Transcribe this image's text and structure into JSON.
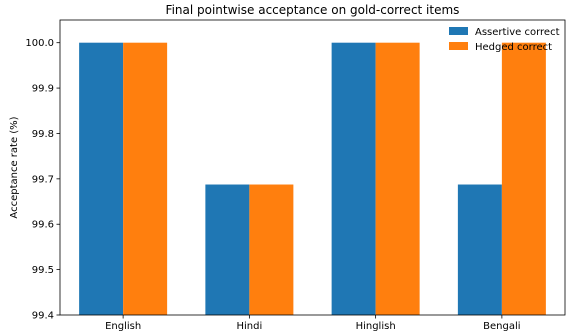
{
  "chart_data": {
    "type": "bar",
    "title": "Final pointwise acceptance on gold-correct items",
    "xlabel": "",
    "ylabel": "Acceptance rate (%)",
    "categories": [
      "English",
      "Hindi",
      "Hinglish",
      "Bengali"
    ],
    "series": [
      {
        "name": "Assertive correct",
        "color": "#1f77b4",
        "values": [
          100.0,
          99.6875,
          100.0,
          99.6875
        ]
      },
      {
        "name": "Hedged correct",
        "color": "#ff7f0e",
        "values": [
          100.0,
          99.6875,
          100.0,
          100.0
        ]
      }
    ],
    "ylim": [
      99.4,
      100.05
    ],
    "yticks": [
      "99.4",
      "99.5",
      "99.6",
      "99.7",
      "99.8",
      "99.9",
      "100.0"
    ],
    "grid": false,
    "legend_position": "top-right"
  }
}
